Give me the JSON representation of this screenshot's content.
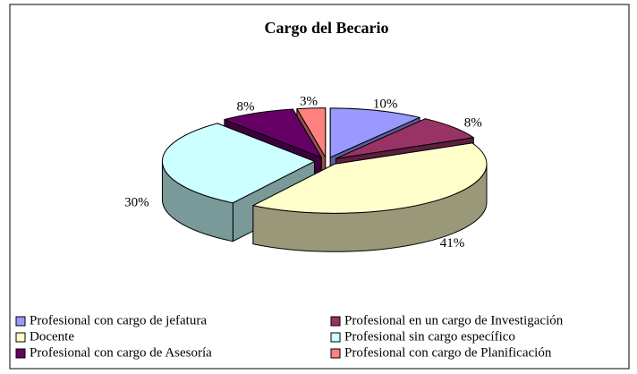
{
  "chart_data": {
    "type": "pie",
    "title": "Cargo del Becario",
    "categories": [
      "Profesional con cargo de jefatura",
      "Profesional en un cargo de Investigación",
      "Docente",
      "Profesional sin cargo específico",
      "Profesional con cargo de Asesoría",
      "Profesional con cargo de Planificación"
    ],
    "values": [
      10,
      8,
      41,
      30,
      8,
      3
    ],
    "value_labels": [
      "10%",
      "8%",
      "41%",
      "30%",
      "8%",
      "3%"
    ],
    "colors": [
      "#9999ff",
      "#993366",
      "#ffffcc",
      "#ccffff",
      "#660066",
      "#ff8080"
    ],
    "legend": "bottom"
  }
}
